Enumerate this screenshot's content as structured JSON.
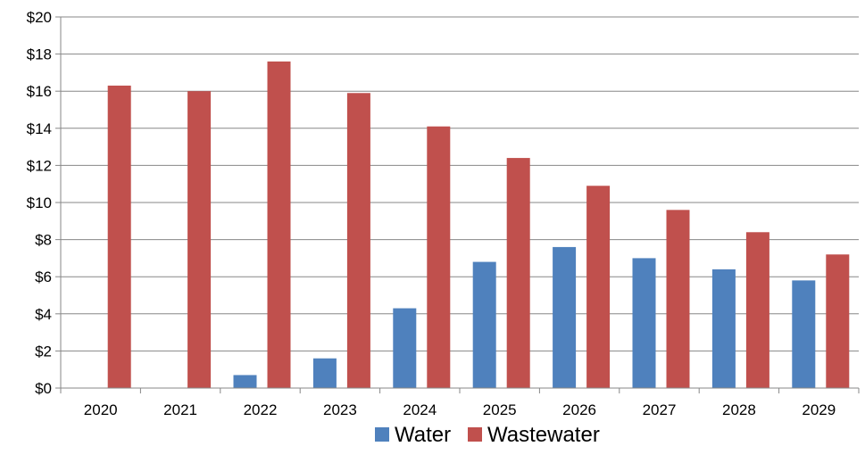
{
  "chart_data": {
    "type": "bar",
    "categories": [
      "2020",
      "2021",
      "2022",
      "2023",
      "2024",
      "2025",
      "2026",
      "2027",
      "2028",
      "2029"
    ],
    "series": [
      {
        "name": "Water",
        "color": "#4F81BD",
        "values": [
          0,
          0,
          0.7,
          1.6,
          4.3,
          6.8,
          7.6,
          7.0,
          6.4,
          5.8
        ]
      },
      {
        "name": "Wastewater",
        "color": "#C0504D",
        "values": [
          16.3,
          16.0,
          17.6,
          15.9,
          14.1,
          12.4,
          10.9,
          9.6,
          8.4,
          7.2
        ]
      }
    ],
    "ylim": [
      0,
      20
    ],
    "y_ticks": [
      0,
      2,
      4,
      6,
      8,
      10,
      12,
      14,
      16,
      18,
      20
    ],
    "y_tick_prefix": "$",
    "grid": true,
    "legend_position": "bottom"
  }
}
